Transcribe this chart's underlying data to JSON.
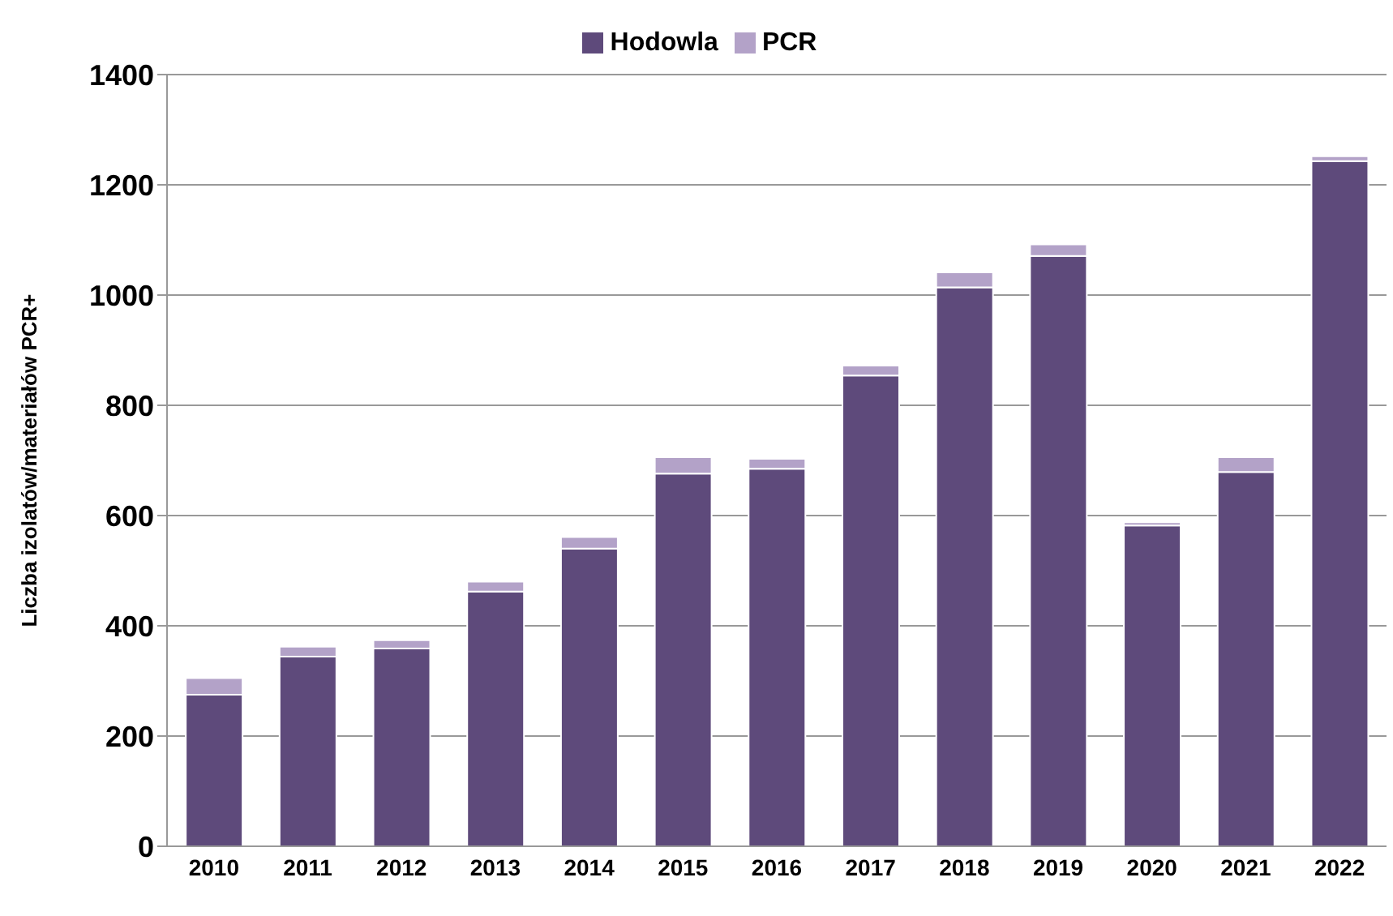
{
  "chart_data": {
    "type": "bar",
    "stacked": true,
    "ylabel": "Liczba izolatów/materiałów  PCR+",
    "categories": [
      "2010",
      "2011",
      "2012",
      "2013",
      "2014",
      "2015",
      "2016",
      "2017",
      "2018",
      "2019",
      "2020",
      "2021",
      "2022"
    ],
    "series": [
      {
        "name": "Hodowla",
        "color": "#5e4a7b",
        "values": [
          275,
          344,
          359,
          462,
          540,
          676,
          685,
          854,
          1014,
          1071,
          582,
          679,
          1243
        ]
      },
      {
        "name": "PCR",
        "color": "#b3a2c8",
        "values": [
          30,
          18,
          15,
          18,
          21,
          30,
          18,
          18,
          27,
          21,
          6,
          27,
          9
        ]
      }
    ],
    "ylim": [
      0,
      1400
    ],
    "yticks": [
      0,
      200,
      400,
      600,
      800,
      1000,
      1200,
      1400
    ],
    "grid": "y",
    "legend": "top"
  }
}
